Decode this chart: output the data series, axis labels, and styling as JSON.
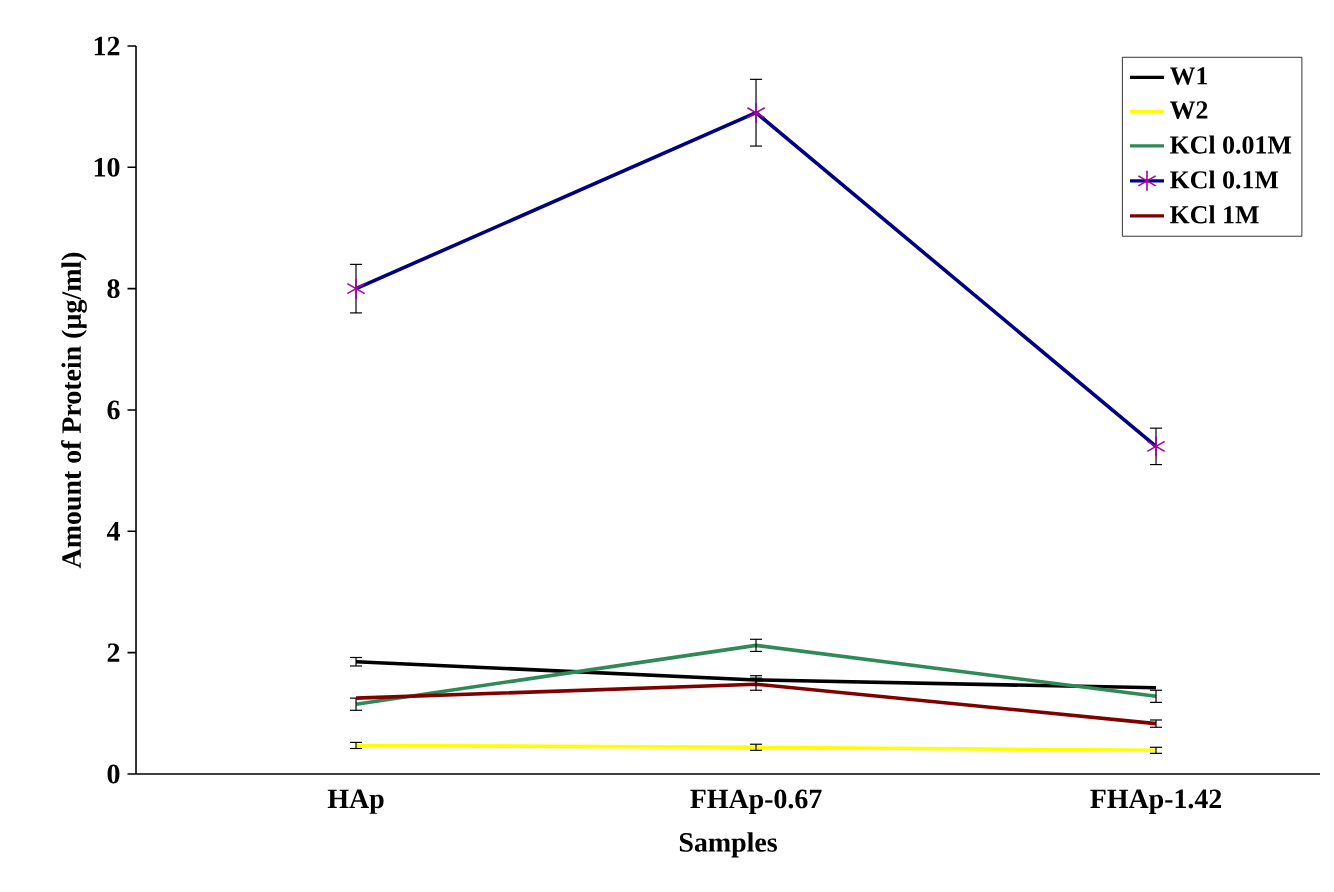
{
  "chart_data": {
    "type": "line",
    "xlabel": "Samples",
    "ylabel": "Amount of Protein (µg/ml)",
    "categories": [
      "HAp",
      "FHAp-0.67",
      "FHAp-1.42"
    ],
    "series": [
      {
        "name": "W1",
        "color": "#000000",
        "values": [
          1.85,
          1.55,
          1.42
        ],
        "errors": [
          0.07,
          0.07,
          null
        ]
      },
      {
        "name": "W2",
        "color": "#ffff00",
        "values": [
          0.47,
          0.44,
          0.39
        ],
        "errors": [
          0.05,
          0.05,
          0.05
        ]
      },
      {
        "name": "KCl 0.01M",
        "color": "#2e8b57",
        "values": [
          1.15,
          2.12,
          1.28
        ],
        "errors": [
          0.1,
          0.1,
          0.1
        ]
      },
      {
        "name": "KCl 0.1M",
        "color": "#000080",
        "values": [
          8.0,
          10.9,
          5.4
        ],
        "errors": [
          0.4,
          0.55,
          0.3
        ],
        "marker": "cross"
      },
      {
        "name": "KCl 1M",
        "color": "#800000",
        "values": [
          1.25,
          1.48,
          0.83
        ],
        "errors": [
          null,
          0.1,
          0.06
        ]
      }
    ],
    "ylim": [
      0,
      12
    ],
    "yticks": [
      0,
      2,
      4,
      6,
      8,
      10,
      12
    ],
    "grid": false,
    "legend": "top right",
    "marker": "none"
  }
}
